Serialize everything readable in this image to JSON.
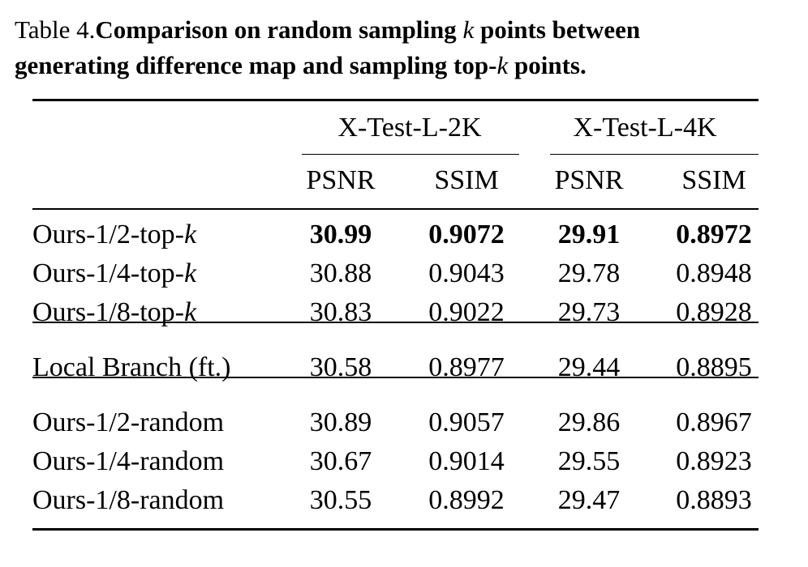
{
  "caption": {
    "lines": [
      [
        {
          "text": "Table 4."
        },
        {
          "text": "Comparison on random sampling ",
          "bold": true
        },
        {
          "text": "k",
          "italic": true
        },
        {
          "text": " points between",
          "bold": true
        }
      ],
      [
        {
          "text": "generating difference map and sampling top-",
          "bold": true
        },
        {
          "text": "k",
          "italic": true
        },
        {
          "text": " points.",
          "bold": true
        }
      ]
    ]
  },
  "table": {
    "groups": [
      "X-Test-L-2K",
      "X-Test-L-4K"
    ],
    "columns": [
      "PSNR",
      "SSIM",
      "PSNR",
      "SSIM"
    ],
    "sections": [
      [
        {
          "label": [
            {
              "text": "Ours-1/2-top-"
            },
            {
              "text": "k",
              "italic": true
            }
          ],
          "values": [
            "30.99",
            "0.9072",
            "29.91",
            "0.8972"
          ],
          "bold": true
        },
        {
          "label": [
            {
              "text": "Ours-1/4-top-"
            },
            {
              "text": "k",
              "italic": true
            }
          ],
          "values": [
            "30.88",
            "0.9043",
            "29.78",
            "0.8948"
          ]
        },
        {
          "label": [
            {
              "text": "Ours-1/8-top-"
            },
            {
              "text": "k",
              "italic": true
            }
          ],
          "values": [
            "30.83",
            "0.9022",
            "29.73",
            "0.8928"
          ]
        }
      ],
      [
        {
          "label": [
            {
              "text": "Local Branch (ft.)"
            }
          ],
          "values": [
            "30.58",
            "0.8977",
            "29.44",
            "0.8895"
          ]
        }
      ],
      [
        {
          "label": [
            {
              "text": "Ours-1/2-random"
            }
          ],
          "values": [
            "30.89",
            "0.9057",
            "29.86",
            "0.8967"
          ]
        },
        {
          "label": [
            {
              "text": "Ours-1/4-random"
            }
          ],
          "values": [
            "30.67",
            "0.9014",
            "29.55",
            "0.8923"
          ]
        },
        {
          "label": [
            {
              "text": "Ours-1/8-random"
            }
          ],
          "values": [
            "30.55",
            "0.8992",
            "29.47",
            "0.8893"
          ]
        }
      ]
    ]
  }
}
